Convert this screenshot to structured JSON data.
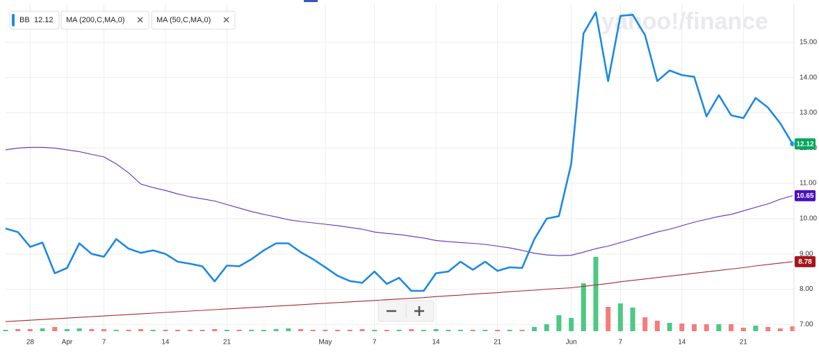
{
  "chart_data": [
    {
      "type": "line",
      "watermark": "yahoo!/finance",
      "categories": [
        null,
        null,
        "28",
        null,
        null,
        "Apr",
        null,
        null,
        "7",
        null,
        null,
        null,
        null,
        "14",
        null,
        null,
        null,
        null,
        "21",
        null,
        null,
        null,
        null,
        null,
        null,
        null,
        "May",
        null,
        null,
        null,
        "7",
        null,
        null,
        null,
        null,
        "14",
        null,
        null,
        null,
        null,
        "21",
        null,
        null,
        null,
        null,
        null,
        "Jun",
        null,
        null,
        null,
        "7",
        null,
        null,
        null,
        null,
        "14",
        null,
        null,
        null,
        null,
        "21",
        null,
        null,
        null,
        null
      ],
      "series": [
        {
          "name": "BB",
          "color": "#1b88e6",
          "values": [
            9.72,
            9.62,
            9.2,
            9.32,
            8.45,
            8.6,
            9.3,
            9.0,
            8.92,
            9.42,
            9.15,
            9.03,
            9.1,
            9.0,
            8.78,
            8.72,
            8.65,
            8.22,
            8.67,
            8.65,
            8.85,
            9.1,
            9.3,
            9.3,
            9.05,
            8.85,
            8.62,
            8.38,
            8.23,
            8.18,
            8.5,
            8.15,
            8.32,
            7.95,
            7.95,
            8.45,
            8.5,
            8.78,
            8.55,
            8.78,
            8.52,
            8.62,
            8.6,
            9.42,
            10.0,
            10.07,
            11.55,
            15.25,
            15.85,
            13.9,
            15.75,
            15.78,
            15.2,
            13.9,
            14.2,
            14.07,
            14.02,
            12.9,
            13.5,
            12.93,
            12.85,
            13.42,
            13.15,
            12.7,
            12.12
          ],
          "badge_color": "#00a85a"
        },
        {
          "name": "MA (200,C,MA,0)",
          "color": "#a52a2a",
          "values": [
            7.08,
            7.1,
            7.12,
            7.14,
            7.16,
            7.18,
            7.2,
            7.22,
            7.24,
            7.26,
            7.28,
            7.3,
            7.32,
            7.34,
            7.36,
            7.38,
            7.4,
            7.42,
            7.44,
            7.46,
            7.48,
            7.5,
            7.52,
            7.54,
            7.56,
            7.58,
            7.6,
            7.62,
            7.64,
            7.66,
            7.68,
            7.7,
            7.72,
            7.74,
            7.76,
            7.79,
            7.81,
            7.83,
            7.86,
            7.88,
            7.9,
            7.93,
            7.95,
            7.97,
            8.0,
            8.02,
            8.04,
            8.08,
            8.12,
            8.16,
            8.21,
            8.25,
            8.29,
            8.33,
            8.37,
            8.41,
            8.45,
            8.49,
            8.53,
            8.57,
            8.61,
            8.66,
            8.7,
            8.74,
            8.78
          ],
          "badge_color": "#a3171b"
        },
        {
          "name": "MA (50,C,MA,0)",
          "color": "#5c2fc2",
          "values": [
            11.95,
            12.0,
            12.02,
            12.02,
            12.0,
            11.95,
            11.9,
            11.82,
            11.75,
            11.55,
            11.3,
            10.98,
            10.88,
            10.8,
            10.7,
            10.62,
            10.56,
            10.5,
            10.4,
            10.3,
            10.2,
            10.12,
            10.05,
            9.97,
            9.92,
            9.88,
            9.84,
            9.8,
            9.75,
            9.7,
            9.62,
            9.58,
            9.55,
            9.5,
            9.45,
            9.38,
            9.35,
            9.32,
            9.3,
            9.27,
            9.22,
            9.17,
            9.1,
            9.02,
            8.97,
            8.95,
            8.96,
            9.05,
            9.15,
            9.22,
            9.32,
            9.42,
            9.52,
            9.62,
            9.7,
            9.8,
            9.9,
            9.98,
            10.06,
            10.12,
            10.22,
            10.32,
            10.42,
            10.55,
            10.65
          ],
          "badge_color": "#4b0fc0"
        }
      ],
      "ylim": [
        6.75,
        16.1
      ],
      "yticks": [
        {
          "value": 7,
          "label": "7.00"
        },
        {
          "value": 8,
          "label": "8.00"
        },
        {
          "value": 9,
          "label": "9.00"
        },
        {
          "value": 10,
          "label": "10.00"
        },
        {
          "value": 11,
          "label": "11.00"
        },
        {
          "value": 12,
          "label": "12.00"
        },
        {
          "value": 13,
          "label": "13.00"
        },
        {
          "value": 14,
          "label": "14.00"
        },
        {
          "value": 15,
          "label": "15.00"
        }
      ],
      "grid": true
    },
    {
      "type": "bar",
      "ylim": [
        0,
        475
      ],
      "values": [
        2,
        3,
        3,
        4,
        6,
        3,
        4,
        3,
        3,
        2,
        2,
        3,
        2,
        2,
        2,
        2,
        2,
        3,
        2,
        2,
        2,
        2,
        3,
        4,
        3,
        2,
        2,
        2,
        2,
        3,
        2,
        2,
        2,
        3,
        2,
        3,
        2,
        2,
        2,
        2,
        2,
        2,
        2,
        6,
        10,
        23,
        19,
        69,
        107,
        35,
        40,
        34,
        20,
        15,
        12,
        11,
        10,
        10,
        10,
        10,
        5,
        8,
        6,
        4,
        7
      ],
      "colors": [
        "#4cc983",
        "#f47c7c",
        "#f47c7c",
        "#4cc983",
        "#f47c7c",
        "#4cc983",
        "#4cc983",
        "#f47c7c",
        "#f47c7c",
        "#4cc983",
        "#f47c7c",
        "#f47c7c",
        "#4cc983",
        "#f47c7c",
        "#f47c7c",
        "#f47c7c",
        "#f47c7c",
        "#f47c7c",
        "#4cc983",
        "#f47c7c",
        "#4cc983",
        "#4cc983",
        "#4cc983",
        "#4cc983",
        "#f47c7c",
        "#f47c7c",
        "#f47c7c",
        "#f47c7c",
        "#f47c7c",
        "#f47c7c",
        "#4cc983",
        "#f47c7c",
        "#4cc983",
        "#f47c7c",
        "#4cc983",
        "#4cc983",
        "#4cc983",
        "#4cc983",
        "#f47c7c",
        "#4cc983",
        "#f47c7c",
        "#4cc983",
        "#f47c7c",
        "#4cc983",
        "#4cc983",
        "#4cc983",
        "#4cc983",
        "#4cc983",
        "#4cc983",
        "#f47c7c",
        "#4cc983",
        "#4cc983",
        "#f47c7c",
        "#f47c7c",
        "#4cc983",
        "#f47c7c",
        "#f47c7c",
        "#f47c7c",
        "#4cc983",
        "#f47c7c",
        "#f47c7c",
        "#4cc983",
        "#f47c7c",
        "#f47c7c",
        "#f47c7c"
      ]
    }
  ]
}
